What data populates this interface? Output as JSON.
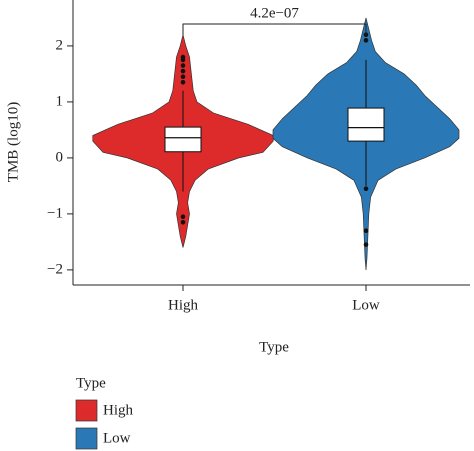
{
  "chart_data": {
    "type": "violin",
    "y_label": "TMB (log10)",
    "x_label": "Type",
    "categories": [
      "High",
      "Low"
    ],
    "ylim": [
      -2.27,
      2.82
    ],
    "yticks": [
      {
        "value": -2,
        "label": "−2"
      },
      {
        "value": -1,
        "label": "−1"
      },
      0,
      1,
      2
    ],
    "legend_title": "Type",
    "annotation": "4.2e−07",
    "series": [
      {
        "name": "High",
        "color": "#dd2b2c",
        "density_y": [
          2.2,
          2.0,
          1.8,
          1.5,
          1.2,
          1.0,
          0.8,
          0.6,
          0.4,
          0.3,
          0.1,
          0.0,
          -0.2,
          -0.4,
          -0.6,
          -0.8,
          -1.0,
          -1.2,
          -1.4,
          -1.6
        ],
        "density": [
          0,
          0.03,
          0.07,
          0.09,
          0.11,
          0.15,
          0.33,
          0.7,
          0.97,
          0.97,
          0.86,
          0.6,
          0.27,
          0.13,
          0.07,
          0.05,
          0.07,
          0.05,
          0.03,
          0
        ],
        "q1": 0.11,
        "median": 0.36,
        "q3": 0.55,
        "whisker_low": -0.6,
        "whisker_high": 1.2,
        "outliers": [
          1.35,
          1.45,
          1.55,
          1.65,
          1.75,
          1.8,
          -1.05,
          -1.15
        ]
      },
      {
        "name": "Low",
        "color": "#2a78b6",
        "density_y": [
          2.5,
          2.3,
          2.1,
          1.9,
          1.7,
          1.5,
          1.3,
          1.1,
          0.9,
          0.7,
          0.5,
          0.35,
          0.2,
          0.0,
          -0.2,
          -0.4,
          -0.7,
          -1.0,
          -1.4,
          -1.8,
          -2.0
        ],
        "density": [
          0,
          0.03,
          0.06,
          0.1,
          0.21,
          0.41,
          0.54,
          0.64,
          0.77,
          0.9,
          1.0,
          1.0,
          0.9,
          0.63,
          0.32,
          0.13,
          0.05,
          0.03,
          0.02,
          0.01,
          0
        ],
        "q1": 0.3,
        "median": 0.54,
        "q3": 0.89,
        "whisker_low": -0.5,
        "whisker_high": 1.75,
        "outliers": [
          2.1,
          2.2,
          -0.55,
          -1.3,
          -1.55
        ]
      }
    ]
  }
}
